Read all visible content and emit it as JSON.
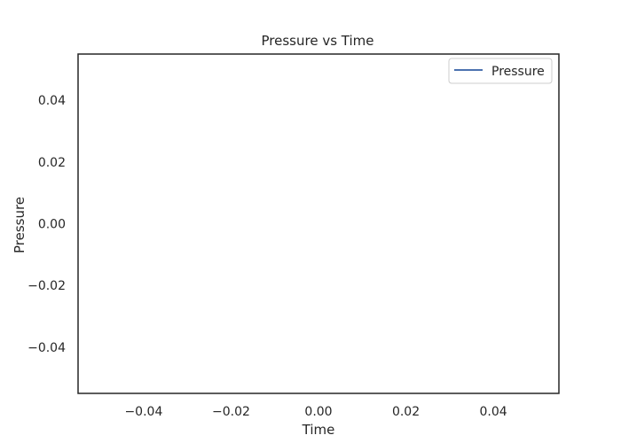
{
  "chart_data": {
    "type": "line",
    "title": "Pressure vs Time",
    "xlabel": "Time",
    "ylabel": "Pressure",
    "xlim": [
      -0.055,
      0.055
    ],
    "ylim": [
      -0.055,
      0.055
    ],
    "x_ticks": [
      -0.04,
      -0.02,
      0.0,
      0.02,
      0.04
    ],
    "x_tick_labels": [
      "−0.04",
      "−0.02",
      "0.00",
      "0.02",
      "0.04"
    ],
    "y_ticks": [
      0.04,
      0.02,
      0.0,
      -0.02,
      -0.04
    ],
    "y_tick_labels": [
      "0.04",
      "0.02",
      "0.00",
      "−0.02",
      "−0.04"
    ],
    "grid": false,
    "legend_position": "top-right",
    "series": [
      {
        "name": "Pressure",
        "color": "#4c72b0",
        "x": [],
        "y": []
      }
    ]
  }
}
